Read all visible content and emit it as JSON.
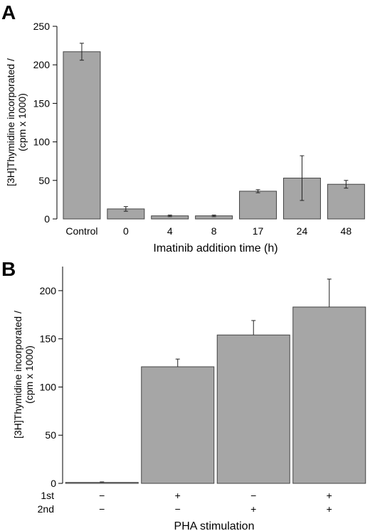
{
  "chart_data": [
    {
      "type": "bar",
      "panel_label": "A",
      "categories": [
        "Control",
        "0",
        "4",
        "8",
        "17",
        "24",
        "48"
      ],
      "values": [
        217,
        13,
        4,
        4,
        36,
        53,
        45
      ],
      "errors": [
        11,
        3,
        1,
        1,
        2,
        29,
        5
      ],
      "ylim": [
        0,
        250
      ],
      "yticks": [
        0,
        50,
        100,
        150,
        200,
        250
      ],
      "xlabel": "Imatinib addition time (h)",
      "ylabel": [
        "[3H]Thymidine incorporated /",
        "(cpm x 1000)"
      ]
    },
    {
      "type": "bar",
      "panel_label": "B",
      "values": [
        1,
        121,
        154,
        183
      ],
      "errors": [
        0.5,
        8,
        15,
        29
      ],
      "ylim": [
        0,
        225
      ],
      "yticks": [
        0,
        50,
        100,
        150,
        200
      ],
      "row_labels": [
        "1st",
        "2nd"
      ],
      "rows": [
        [
          "−",
          "+",
          "−",
          "+"
        ],
        [
          "−",
          "−",
          "+",
          "+"
        ]
      ],
      "xlabel": "PHA stimulation",
      "ylabel": [
        "[3H]Thymidine incorporated /",
        "(cpm x 1000)"
      ]
    }
  ]
}
